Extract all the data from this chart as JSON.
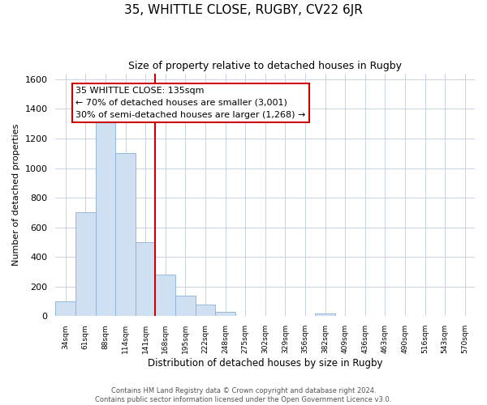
{
  "title": "35, WHITTLE CLOSE, RUGBY, CV22 6JR",
  "subtitle": "Size of property relative to detached houses in Rugby",
  "xlabel": "Distribution of detached houses by size in Rugby",
  "ylabel": "Number of detached properties",
  "bar_labels": [
    "34sqm",
    "61sqm",
    "88sqm",
    "114sqm",
    "141sqm",
    "168sqm",
    "195sqm",
    "222sqm",
    "248sqm",
    "275sqm",
    "302sqm",
    "329sqm",
    "356sqm",
    "382sqm",
    "409sqm",
    "436sqm",
    "463sqm",
    "490sqm",
    "516sqm",
    "543sqm",
    "570sqm"
  ],
  "bar_heights": [
    100,
    700,
    1340,
    1100,
    500,
    280,
    140,
    80,
    30,
    0,
    0,
    0,
    0,
    20,
    0,
    0,
    0,
    0,
    0,
    0,
    0
  ],
  "bar_color": "#cfe0f2",
  "bar_edge_color": "#8ab0d0",
  "vline_color": "#cc0000",
  "annotation_title": "35 WHITTLE CLOSE: 135sqm",
  "annotation_line1": "← 70% of detached houses are smaller (3,001)",
  "annotation_line2": "30% of semi-detached houses are larger (1,268) →",
  "annotation_box_color": "#ffffff",
  "annotation_box_edge": "#cc0000",
  "ylim": [
    0,
    1640
  ],
  "yticks": [
    0,
    200,
    400,
    600,
    800,
    1000,
    1200,
    1400,
    1600
  ],
  "footer1": "Contains HM Land Registry data © Crown copyright and database right 2024.",
  "footer2": "Contains public sector information licensed under the Open Government Licence v3.0.",
  "background_color": "#ffffff",
  "grid_color": "#c8d4e4"
}
